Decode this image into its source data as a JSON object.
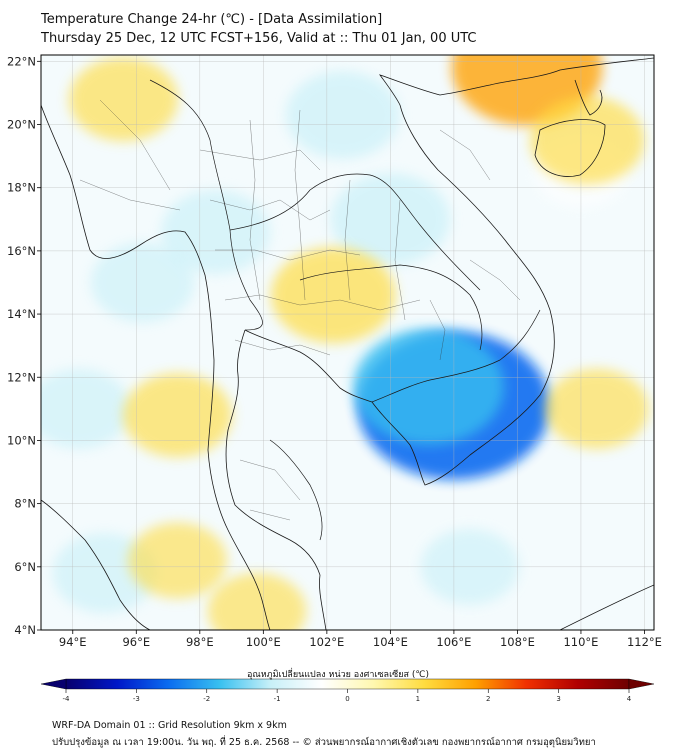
{
  "header": {
    "line1": "Temperature Change 24-hr (℃) - [Data Assimilation]",
    "line2": "Thursday 25 Dec, 12 UTC FCST+156, Valid at :: Thu 01 Jan, 00 UTC"
  },
  "map": {
    "lat_labels": [
      "22°N",
      "20°N",
      "18°N",
      "16°N",
      "14°N",
      "12°N",
      "10°N",
      "8°N",
      "6°N",
      "4°N"
    ],
    "lon_labels": [
      "94°E",
      "96°E",
      "98°E",
      "100°E",
      "102°E",
      "104°E",
      "106°E",
      "108°E",
      "110°E",
      "112°E"
    ],
    "lat_values": [
      22,
      20,
      18,
      16,
      14,
      12,
      10,
      8,
      6,
      4
    ],
    "lon_values": [
      94,
      96,
      98,
      100,
      102,
      104,
      106,
      108,
      110,
      112
    ],
    "extent": {
      "lon_min": 93,
      "lon_max": 112.3,
      "lat_min": 4,
      "lat_max": 22.2
    },
    "anomalies": [
      {
        "lon": 106.0,
        "lat": 11.1,
        "value": -2.6
      },
      {
        "lon": 105.2,
        "lat": 11.7,
        "value": -1.8
      },
      {
        "lon": 104.0,
        "lat": 17.0,
        "value": -1.2
      },
      {
        "lon": 102.5,
        "lat": 20.3,
        "value": -1.1
      },
      {
        "lon": 98.5,
        "lat": 16.6,
        "value": -1.0
      },
      {
        "lon": 96.2,
        "lat": 15.0,
        "value": -0.9
      },
      {
        "lon": 94.2,
        "lat": 11.0,
        "value": -0.9
      },
      {
        "lon": 95.0,
        "lat": 5.8,
        "value": -0.9
      },
      {
        "lon": 106.5,
        "lat": 6.0,
        "value": -0.8
      },
      {
        "lon": 110.0,
        "lat": 18.5,
        "value": -0.7
      },
      {
        "lon": 102.2,
        "lat": 14.6,
        "value": 1.3
      },
      {
        "lon": 108.3,
        "lat": 21.8,
        "value": 1.8
      },
      {
        "lon": 110.2,
        "lat": 19.5,
        "value": 1.1
      },
      {
        "lon": 97.3,
        "lat": 10.8,
        "value": 1.0
      },
      {
        "lon": 95.6,
        "lat": 20.8,
        "value": 1.0
      },
      {
        "lon": 110.5,
        "lat": 11.0,
        "value": 0.9
      },
      {
        "lon": 97.3,
        "lat": 6.2,
        "value": 0.8
      },
      {
        "lon": 99.8,
        "lat": 4.6,
        "value": 0.8
      }
    ]
  },
  "colorbar": {
    "label": "อุณหภูมิเปลี่ยนแปลง หน่วย องศาเซลเซียส (℃)",
    "min": -4,
    "max": 4,
    "ticks": [
      "-4",
      "-3",
      "-2",
      "-1",
      "0",
      "1",
      "2",
      "3",
      "4"
    ],
    "tick_values": [
      -4,
      -3,
      -2,
      -1,
      0,
      1,
      2,
      3,
      4
    ],
    "colors": [
      "#08006e",
      "#0018c8",
      "#0a6cf0",
      "#38c0f0",
      "#c8f0f8",
      "#ffffff",
      "#fff8b0",
      "#ffdc40",
      "#ffa000",
      "#f03000",
      "#b00000",
      "#6e0000"
    ]
  },
  "footer": {
    "line1": "WRF-DA Domain 01 :: Grid Resolution 9km x 9km",
    "line2": "ปรับปรุงข้อมูล ณ เวลา 19:00น. วัน พฤ. ที่ 25 ธ.ค. 2568 -- © ส่วนพยากรณ์อากาศเชิงตัวเลข กองพยากรณ์อากาศ กรมอุตุนิยมวิทยา"
  }
}
